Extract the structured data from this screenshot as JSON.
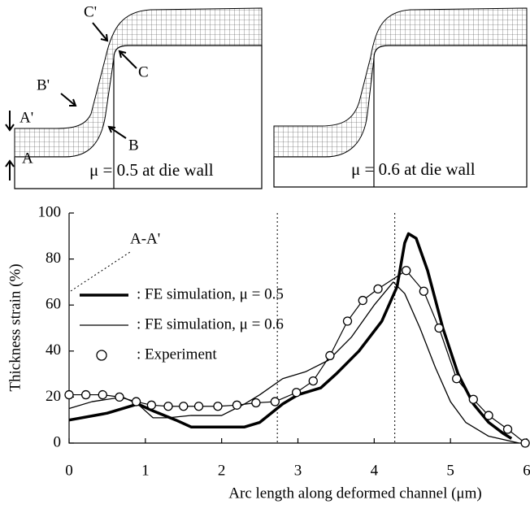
{
  "mesh_panels": [
    {
      "caption": "μ = 0.5 at die wall",
      "labels": [
        "C'",
        "C",
        "B'",
        "B",
        "A'",
        "A"
      ]
    },
    {
      "caption": "μ = 0.6 at die wall"
    }
  ],
  "chart_data": {
    "type": "line",
    "xlabel": "Arc length along deformed channel (μm)",
    "ylabel": "Thickness strain  (%)",
    "annotation": "A-A'",
    "vlines": [
      2.73,
      4.27
    ],
    "xlim": [
      0,
      6
    ],
    "xticks": [
      0,
      1,
      2,
      3,
      4,
      5,
      6
    ],
    "ylim": [
      0,
      100
    ],
    "yticks": [
      0,
      20,
      40,
      60,
      80,
      100
    ],
    "series": [
      {
        "name": ": FE simulation, μ = 0.5",
        "color": "#000",
        "width": 3.5,
        "markers": false,
        "x": [
          0,
          0.5,
          0.9,
          1.1,
          1.4,
          1.6,
          2.0,
          2.3,
          2.5,
          2.8,
          3.0,
          3.3,
          3.5,
          3.8,
          4.1,
          4.3,
          4.4,
          4.45,
          4.55,
          4.7,
          4.9,
          5.1,
          5.3,
          5.5,
          5.7,
          5.8
        ],
        "values": [
          10,
          13,
          17,
          14,
          10,
          7,
          7,
          7,
          9,
          17,
          21,
          24,
          30,
          40,
          53,
          68,
          87,
          91,
          89,
          75,
          50,
          30,
          17,
          9,
          4,
          2
        ]
      },
      {
        "name": ": FE simulation, μ = 0.6",
        "color": "#000",
        "width": 1.3,
        "markers": false,
        "x": [
          0,
          0.3,
          0.7,
          0.9,
          1.1,
          1.3,
          1.6,
          2.0,
          2.3,
          2.5,
          2.8,
          3.1,
          3.4,
          3.7,
          4.0,
          4.25,
          4.4,
          4.6,
          4.8,
          5.0,
          5.2,
          5.5,
          5.9
        ],
        "values": [
          15,
          18,
          20,
          17,
          11,
          11,
          12,
          12,
          17,
          21,
          28,
          31,
          36,
          46,
          60,
          70,
          65,
          50,
          33,
          18,
          9,
          3,
          0
        ]
      },
      {
        "name": ": Experiment",
        "color": "#000",
        "width": 1.2,
        "markers": true,
        "x": [
          0,
          0.22,
          0.44,
          0.66,
          0.88,
          1.08,
          1.3,
          1.5,
          1.7,
          1.95,
          2.2,
          2.45,
          2.7,
          2.98,
          3.2,
          3.42,
          3.65,
          3.85,
          4.05,
          4.42,
          4.65,
          4.85,
          5.08,
          5.3,
          5.5,
          5.75,
          5.98
        ],
        "values": [
          21,
          21,
          21,
          20,
          18,
          16.5,
          16,
          16,
          16,
          16,
          16.5,
          17.5,
          18,
          22,
          27,
          38,
          53,
          62,
          67,
          75,
          66,
          50,
          28,
          19,
          12,
          6,
          0
        ]
      }
    ]
  }
}
